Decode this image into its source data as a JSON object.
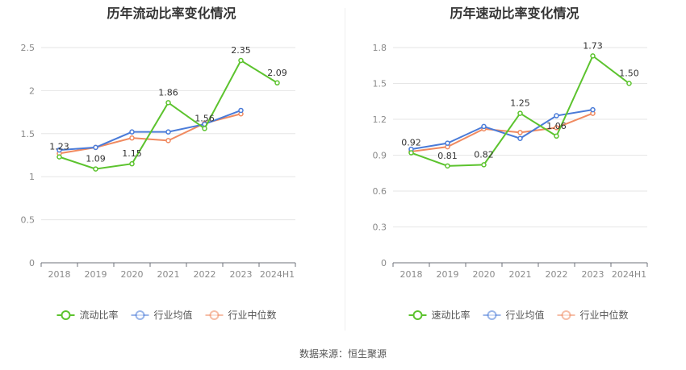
{
  "source_text": "数据来源：恒生聚源",
  "chart_data": [
    {
      "type": "line",
      "title": "历年流动比率变化情况",
      "categories": [
        "2018",
        "2019",
        "2020",
        "2021",
        "2022",
        "2023",
        "2024H1"
      ],
      "ylim": [
        0,
        2.5
      ],
      "yticks": [
        "0",
        "0.5",
        "1",
        "1.5",
        "2",
        "2.5"
      ],
      "grid": true,
      "legend_position": "bottom",
      "series": [
        {
          "name": "流动比率",
          "color": "#5cc32e",
          "values": [
            1.23,
            1.09,
            1.15,
            1.86,
            1.56,
            2.35,
            2.09
          ],
          "labels": [
            "1.23",
            "1.09",
            "1.15",
            "1.86",
            "1.56",
            "2.35",
            "2.09"
          ]
        },
        {
          "name": "行业均值",
          "color": "#4a7bd8",
          "values": [
            1.31,
            1.34,
            1.52,
            1.52,
            1.61,
            1.77,
            null
          ]
        },
        {
          "name": "行业中位数",
          "color": "#f08a60",
          "values": [
            1.27,
            1.34,
            1.45,
            1.42,
            1.62,
            1.73,
            null
          ]
        }
      ]
    },
    {
      "type": "line",
      "title": "历年速动比率变化情况",
      "categories": [
        "2018",
        "2019",
        "2020",
        "2021",
        "2022",
        "2023",
        "2024H1"
      ],
      "ylim": [
        0,
        1.8
      ],
      "yticks": [
        "0",
        "0.3",
        "0.6",
        "0.9",
        "1.2",
        "1.5",
        "1.8"
      ],
      "grid": true,
      "legend_position": "bottom",
      "series": [
        {
          "name": "速动比率",
          "color": "#5cc32e",
          "values": [
            0.92,
            0.81,
            0.82,
            1.25,
            1.06,
            1.73,
            1.5
          ],
          "labels": [
            "0.92",
            "0.81",
            "0.82",
            "1.25",
            "1.06",
            "1.73",
            "1.50"
          ]
        },
        {
          "name": "行业均值",
          "color": "#4a7bd8",
          "values": [
            0.95,
            1.0,
            1.14,
            1.04,
            1.23,
            1.28,
            null
          ]
        },
        {
          "name": "行业中位数",
          "color": "#f08a60",
          "values": [
            0.93,
            0.97,
            1.12,
            1.09,
            1.13,
            1.25,
            null
          ]
        }
      ]
    }
  ]
}
